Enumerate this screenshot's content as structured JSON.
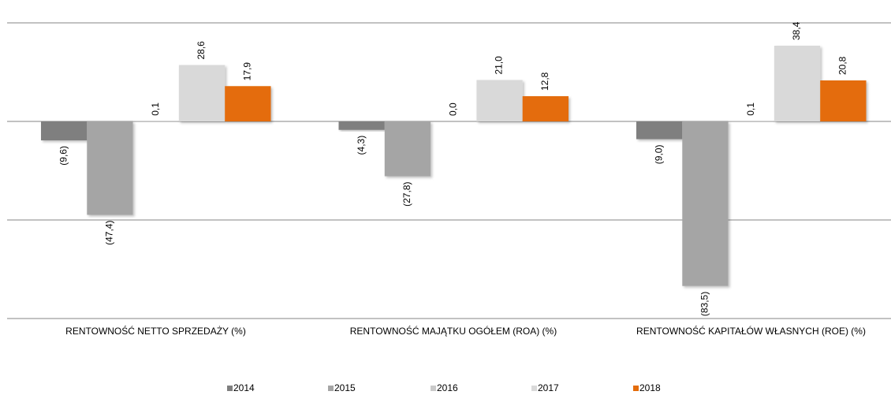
{
  "chart_data": {
    "type": "bar",
    "categories": [
      "RENTOWNOŚĆ NETTO SPRZEDAŻY (%)",
      "RENTOWNOŚĆ MAJĄTKU OGÓŁEM (ROA) (%)",
      "RENTOWNOŚĆ KAPITAŁÓW WŁASNYCH (ROE) (%)"
    ],
    "series": [
      {
        "name": "2014",
        "color": "#7f7f7f",
        "values": [
          -9.6,
          -4.3,
          -9.0
        ],
        "value_labels": [
          "(9,6)",
          "(4,3)",
          "(9,0)"
        ]
      },
      {
        "name": "2015",
        "color": "#a5a5a5",
        "values": [
          -47.4,
          -27.8,
          -83.5
        ],
        "value_labels": [
          "(47,4)",
          "(27,8)",
          "(83,5)"
        ]
      },
      {
        "name": "2016",
        "color": "#c9c9c9",
        "values": [
          0.1,
          0.0,
          0.1
        ],
        "value_labels": [
          "0,1",
          "0,0",
          "0,1"
        ]
      },
      {
        "name": "2017",
        "color": "#d9d9d9",
        "values": [
          28.6,
          21.0,
          38.4
        ],
        "value_labels": [
          "28,6",
          "21,0",
          "38,4"
        ]
      },
      {
        "name": "2018",
        "color": "#e46c0a",
        "values": [
          17.9,
          12.8,
          20.8
        ],
        "value_labels": [
          "17,9",
          "12,8",
          "20,8"
        ]
      }
    ],
    "ylim": [
      -100,
      50
    ],
    "yticks": [
      -100,
      -50,
      0,
      50
    ],
    "grid": true,
    "legend": "bottom"
  }
}
